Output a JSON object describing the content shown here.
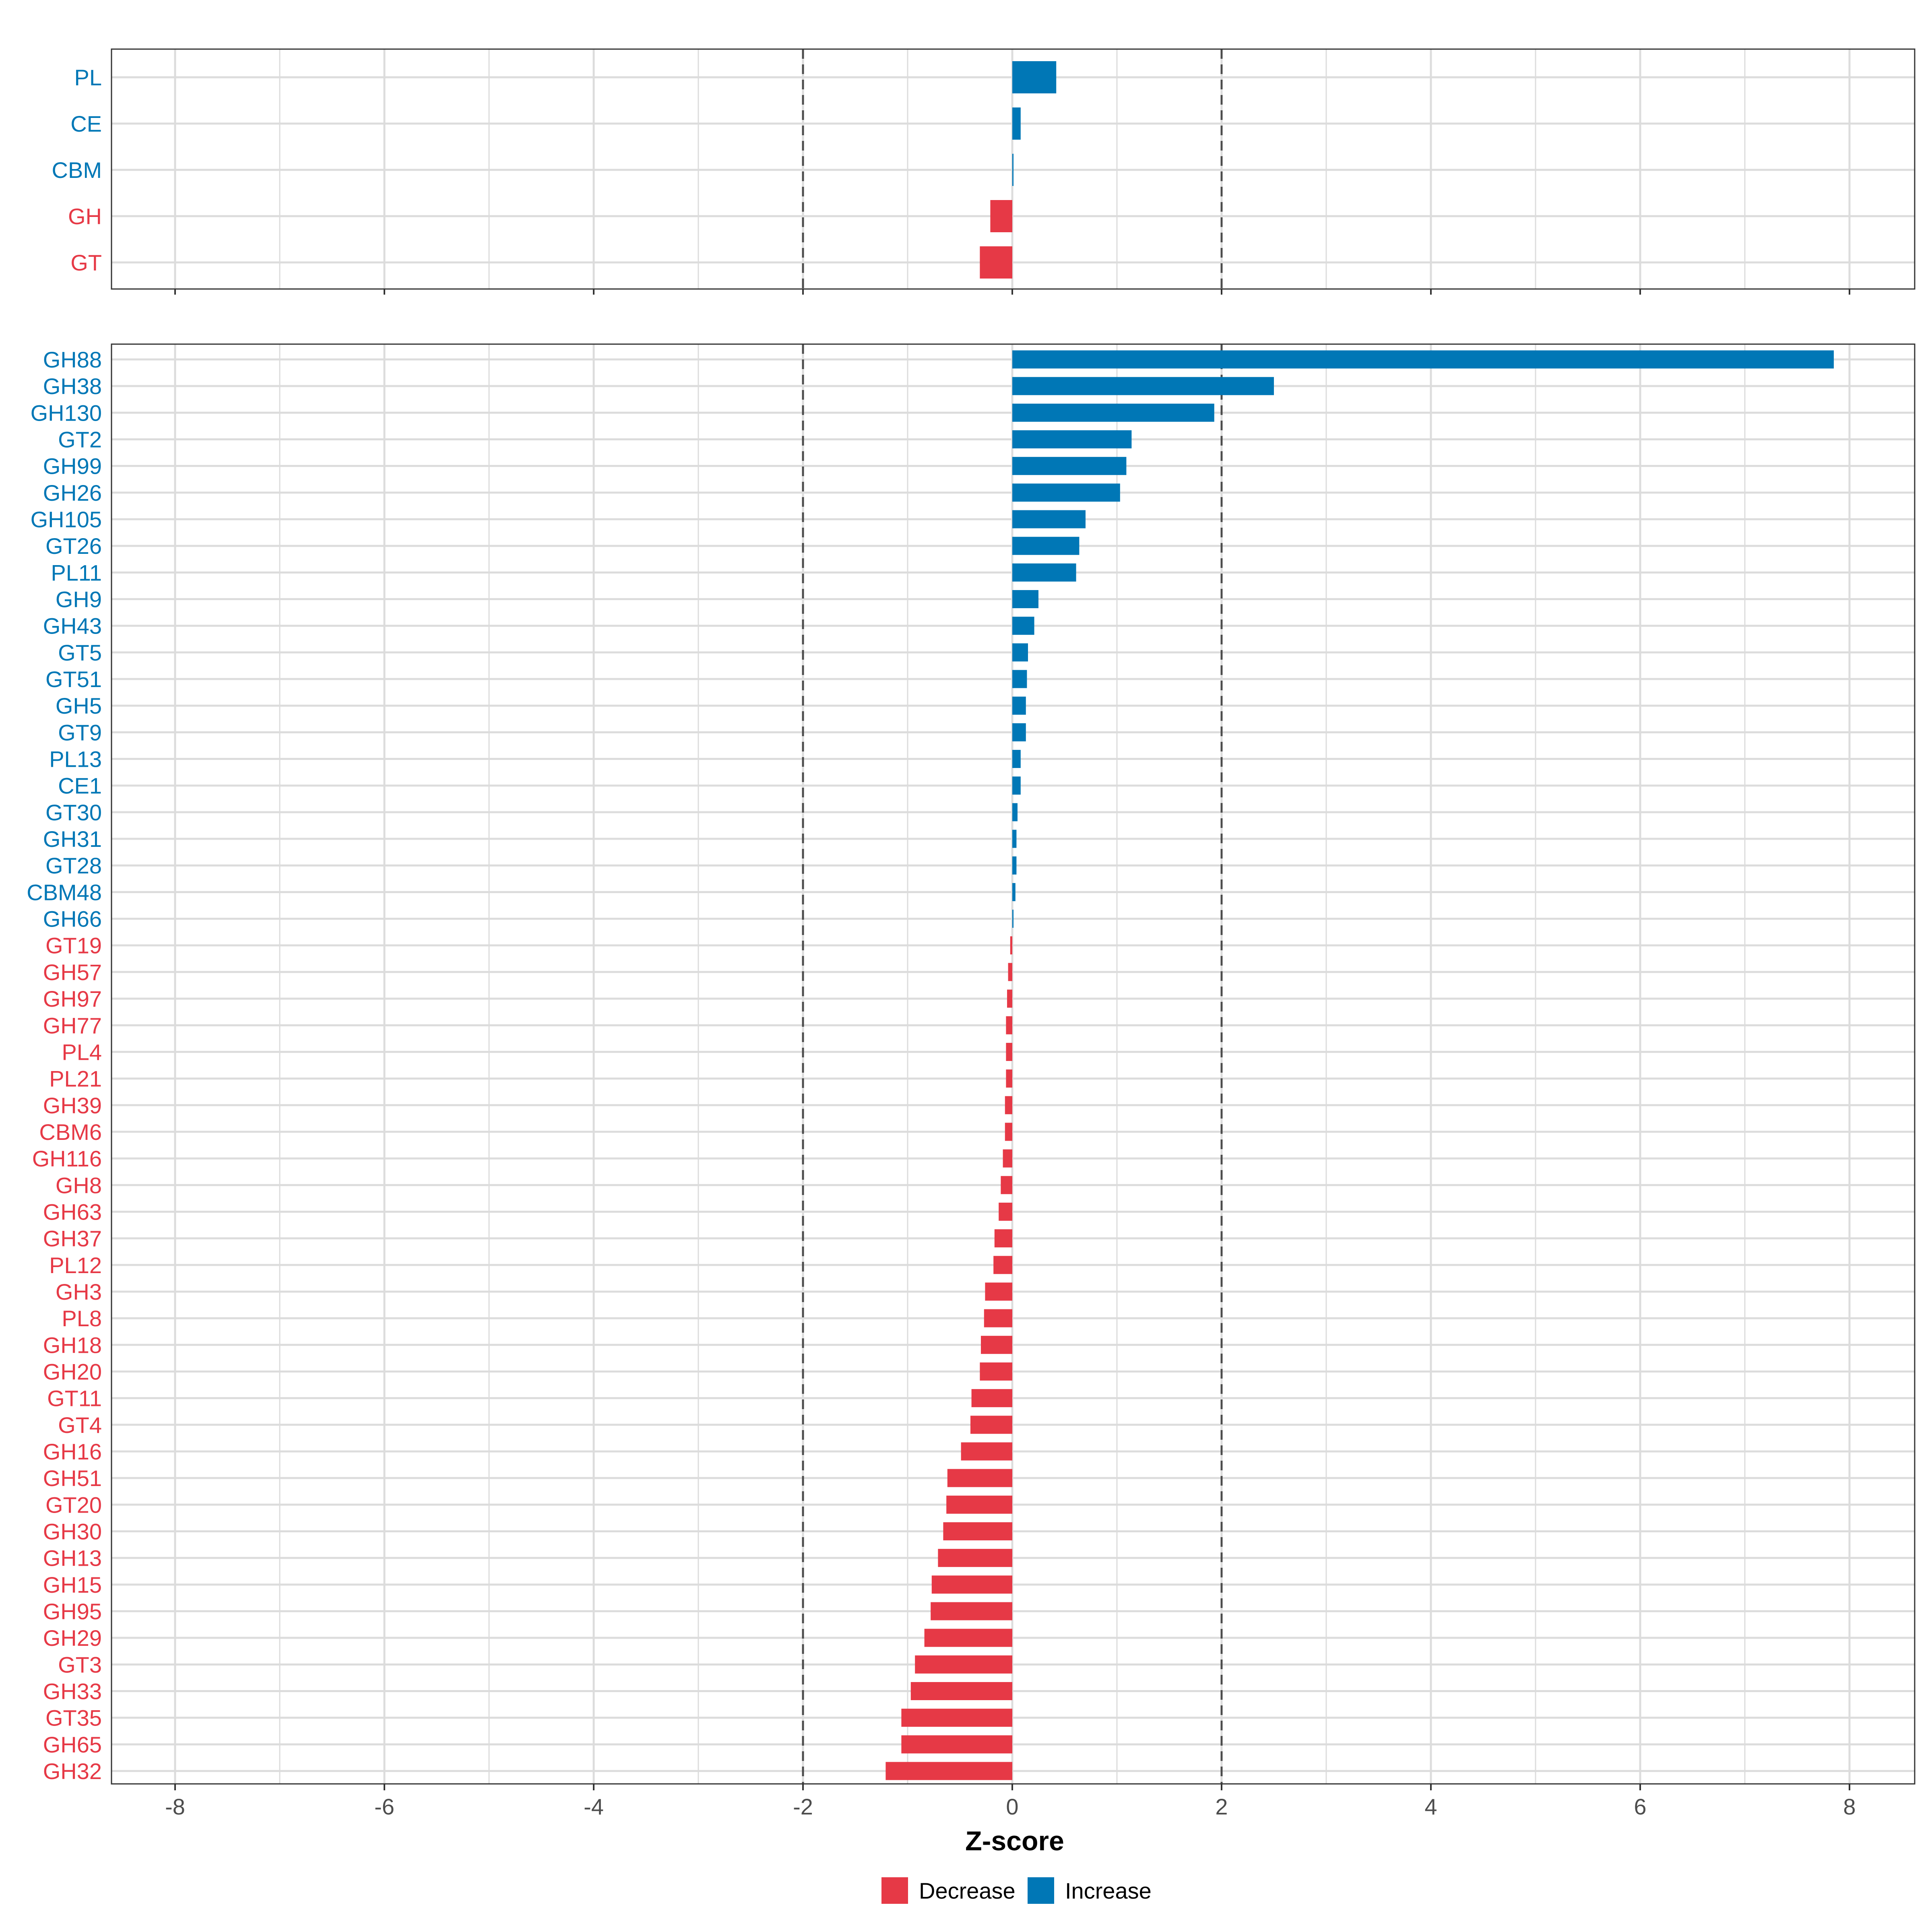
{
  "chart_data": [
    {
      "type": "bar",
      "orientation": "horizontal",
      "panel": "summary",
      "xlabel": "",
      "xlim": [
        -8.6,
        8.6
      ],
      "reference_lines": [
        -2,
        2
      ],
      "grid": true,
      "categories": [
        "PL",
        "CE",
        "CBM",
        "GH",
        "GT"
      ],
      "values": [
        0.42,
        0.08,
        0.01,
        -0.21,
        -0.31
      ]
    },
    {
      "type": "bar",
      "orientation": "horizontal",
      "panel": "families",
      "xlabel": "Z-score",
      "xlim": [
        -8.6,
        8.6
      ],
      "xticks": [
        -8,
        -6,
        -4,
        -2,
        0,
        2,
        4,
        6,
        8
      ],
      "xtick_labels": [
        "-8",
        "-6",
        "-4",
        "-2",
        "0",
        "2",
        "4",
        "6",
        "8"
      ],
      "reference_lines": [
        -2,
        2
      ],
      "grid": true,
      "categories": [
        "GH88",
        "GH38",
        "GH130",
        "GT2",
        "GH99",
        "GH26",
        "GH105",
        "GT26",
        "PL11",
        "GH9",
        "GH43",
        "GT5",
        "GT51",
        "GH5",
        "GT9",
        "PL13",
        "CE1",
        "GT30",
        "GH31",
        "GT28",
        "CBM48",
        "GH66",
        "GT19",
        "GH57",
        "GH97",
        "GH77",
        "PL4",
        "PL21",
        "GH39",
        "CBM6",
        "GH116",
        "GH8",
        "GH63",
        "GH37",
        "PL12",
        "GH3",
        "PL8",
        "GH18",
        "GH20",
        "GT11",
        "GT4",
        "GH16",
        "GH51",
        "GT20",
        "GH30",
        "GH13",
        "GH15",
        "GH95",
        "GH29",
        "GT3",
        "GH33",
        "GT35",
        "GH65",
        "GH32"
      ],
      "values": [
        7.85,
        2.5,
        1.93,
        1.14,
        1.09,
        1.03,
        0.7,
        0.64,
        0.61,
        0.25,
        0.21,
        0.15,
        0.14,
        0.13,
        0.13,
        0.08,
        0.08,
        0.05,
        0.04,
        0.04,
        0.03,
        0.01,
        -0.02,
        -0.04,
        -0.05,
        -0.06,
        -0.06,
        -0.06,
        -0.07,
        -0.07,
        -0.09,
        -0.11,
        -0.13,
        -0.17,
        -0.18,
        -0.26,
        -0.27,
        -0.3,
        -0.31,
        -0.39,
        -0.4,
        -0.49,
        -0.62,
        -0.63,
        -0.66,
        -0.71,
        -0.77,
        -0.78,
        -0.84,
        -0.93,
        -0.97,
        -1.06,
        -1.06,
        -1.21
      ]
    }
  ],
  "legend": {
    "position": "bottom",
    "entries": [
      {
        "label": "Decrease",
        "color": "#e63946"
      },
      {
        "label": "Increase",
        "color": "#0077b6"
      }
    ]
  },
  "colors": {
    "decrease": "#e63946",
    "increase": "#0077b6",
    "grid": "#dcdcdc",
    "reference_line": "#4d4d4d",
    "panel_border": "#333333"
  }
}
